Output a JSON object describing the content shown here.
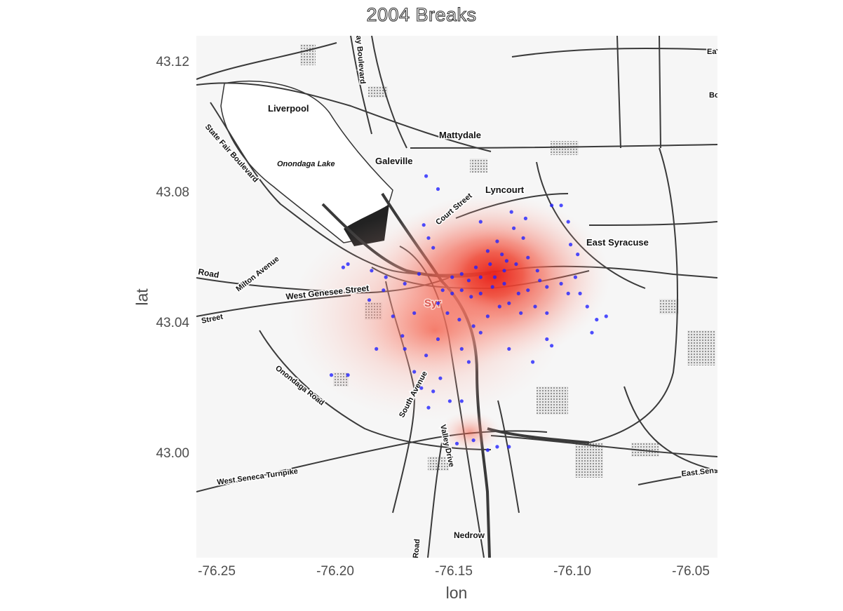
{
  "title": "2004 Breaks",
  "x_axis": {
    "title": "lon",
    "ticks": [
      "-76.25",
      "-76.20",
      "-76.15",
      "-76.10",
      "-76.05"
    ]
  },
  "y_axis": {
    "title": "lat",
    "ticks": [
      "43.12",
      "43.08",
      "43.04",
      "43.00"
    ]
  },
  "map_labels": [
    "Liverpool",
    "Mattydale",
    "Galeville",
    "Onondaga Lake",
    "Lyncourt",
    "East Syracuse",
    "State Fair Boulevard",
    "Court Street",
    "Milton Avenue",
    "West Genesee Street",
    "Onondaga Road",
    "South Avenue",
    "Valley Drive",
    "West Seneca Turnpike",
    "Nedrow",
    "Road",
    "Street",
    "East Sen",
    "Ea",
    "Bo",
    "ay Boulevard",
    "Syr",
    "Road"
  ],
  "colors": {
    "heat_high": "#e8201a",
    "heat_low": "#ffffff",
    "points": "#2222ff",
    "roads": "#3a3a3a"
  },
  "chart_data": {
    "type": "scatter",
    "title": "2004 Breaks",
    "xlabel": "lon",
    "ylabel": "lat",
    "xlim": [
      -76.26,
      -76.04
    ],
    "ylim": [
      42.968,
      43.128
    ],
    "overlay": "density heatmap (red)",
    "points": [
      [
        -76.163,
        43.085
      ],
      [
        -76.158,
        43.081
      ],
      [
        -76.16,
        43.063
      ],
      [
        -76.164,
        43.07
      ],
      [
        -76.14,
        43.071
      ],
      [
        -76.127,
        43.074
      ],
      [
        -76.121,
        43.072
      ],
      [
        -76.126,
        43.069
      ],
      [
        -76.122,
        43.066
      ],
      [
        -76.11,
        43.076
      ],
      [
        -76.106,
        43.076
      ],
      [
        -76.103,
        43.071
      ],
      [
        -76.102,
        43.064
      ],
      [
        -76.099,
        43.061
      ],
      [
        -76.131,
        43.061
      ],
      [
        -76.129,
        43.059
      ],
      [
        -76.136,
        43.058
      ],
      [
        -76.13,
        43.056
      ],
      [
        -76.134,
        43.054
      ],
      [
        -76.14,
        43.054
      ],
      [
        -76.145,
        43.053
      ],
      [
        -76.148,
        43.055
      ],
      [
        -76.152,
        43.054
      ],
      [
        -76.135,
        43.051
      ],
      [
        -76.14,
        43.049
      ],
      [
        -76.144,
        43.048
      ],
      [
        -76.148,
        43.05
      ],
      [
        -76.152,
        43.049
      ],
      [
        -76.156,
        43.05
      ],
      [
        -76.166,
        43.055
      ],
      [
        -76.172,
        43.052
      ],
      [
        -76.18,
        43.054
      ],
      [
        -76.186,
        43.056
      ],
      [
        -76.196,
        43.058
      ],
      [
        -76.198,
        43.057
      ],
      [
        -76.187,
        43.047
      ],
      [
        -76.181,
        43.05
      ],
      [
        -76.177,
        43.042
      ],
      [
        -76.173,
        43.036
      ],
      [
        -76.168,
        43.043
      ],
      [
        -76.158,
        43.046
      ],
      [
        -76.154,
        43.043
      ],
      [
        -76.149,
        43.041
      ],
      [
        -76.143,
        43.039
      ],
      [
        -76.137,
        43.042
      ],
      [
        -76.132,
        43.045
      ],
      [
        -76.128,
        43.046
      ],
      [
        -76.124,
        43.049
      ],
      [
        -76.12,
        43.05
      ],
      [
        -76.115,
        43.053
      ],
      [
        -76.112,
        43.051
      ],
      [
        -76.117,
        43.045
      ],
      [
        -76.112,
        43.043
      ],
      [
        -76.106,
        43.052
      ],
      [
        -76.1,
        43.054
      ],
      [
        -76.095,
        43.045
      ],
      [
        -76.091,
        43.041
      ],
      [
        -76.087,
        43.042
      ],
      [
        -76.093,
        43.037
      ],
      [
        -76.112,
        43.035
      ],
      [
        -76.11,
        43.033
      ],
      [
        -76.118,
        43.028
      ],
      [
        -76.128,
        43.032
      ],
      [
        -76.14,
        43.037
      ],
      [
        -76.148,
        43.032
      ],
      [
        -76.158,
        43.035
      ],
      [
        -76.163,
        43.03
      ],
      [
        -76.172,
        43.032
      ],
      [
        -76.184,
        43.032
      ],
      [
        -76.168,
        43.025
      ],
      [
        -76.157,
        43.023
      ],
      [
        -76.16,
        43.019
      ],
      [
        -76.153,
        43.016
      ],
      [
        -76.145,
        43.028
      ],
      [
        -76.148,
        43.016
      ],
      [
        -76.203,
        43.024
      ],
      [
        -76.196,
        43.024
      ],
      [
        -76.165,
        43.02
      ],
      [
        -76.162,
        43.014
      ],
      [
        -76.15,
        43.003
      ],
      [
        -76.143,
        43.004
      ],
      [
        -76.137,
        43.001
      ],
      [
        -76.133,
        43.002
      ],
      [
        -76.128,
        43.002
      ],
      [
        -76.133,
        43.065
      ],
      [
        -76.137,
        43.062
      ],
      [
        -76.125,
        43.058
      ],
      [
        -76.12,
        43.06
      ],
      [
        -76.116,
        43.056
      ],
      [
        -76.142,
        43.057
      ],
      [
        -76.162,
        43.066
      ],
      [
        -76.13,
        43.052
      ],
      [
        -76.123,
        43.043
      ],
      [
        -76.103,
        43.049
      ],
      [
        -76.098,
        43.049
      ]
    ]
  }
}
